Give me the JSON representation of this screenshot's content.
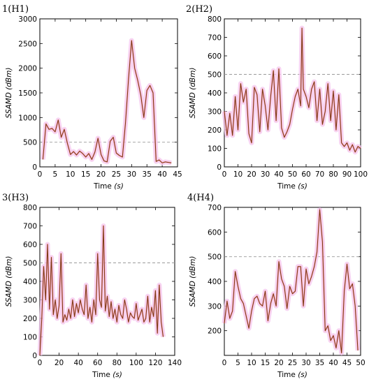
{
  "colors": {
    "line": "#7a3a14",
    "glow": "#f4c6ee",
    "threshold": "#9a9a9a"
  },
  "chart_data": [
    {
      "type": "line",
      "panel_label": "1(H1)",
      "xlabel": "Time",
      "xunit": "(s)",
      "ylabel": "SSAMD",
      "yunit": "(dBm)",
      "xlim": [
        0,
        45
      ],
      "ylim": [
        0,
        3000
      ],
      "xticks": [
        "0",
        "5",
        "10",
        "15",
        "20",
        "25",
        "30",
        "35",
        "40",
        "45"
      ],
      "yticks": [
        "0",
        "500",
        "1000",
        "1500",
        "2000",
        "2500",
        "3000"
      ],
      "threshold": 500,
      "x": [
        1,
        2,
        3,
        4,
        5,
        6,
        7,
        8,
        9,
        10,
        11,
        12,
        13,
        14,
        15,
        16,
        17,
        18,
        19,
        20,
        21,
        22,
        23,
        24,
        25,
        26,
        27,
        28,
        29,
        30,
        31,
        32,
        33,
        34,
        35,
        36,
        37,
        38,
        39,
        40,
        41,
        42,
        43
      ],
      "y": [
        150,
        870,
        760,
        780,
        710,
        950,
        600,
        760,
        480,
        250,
        310,
        240,
        320,
        270,
        200,
        270,
        150,
        300,
        580,
        250,
        120,
        100,
        520,
        600,
        280,
        230,
        200,
        900,
        1800,
        2560,
        2000,
        1750,
        1450,
        1000,
        1550,
        1650,
        1500,
        110,
        140,
        80,
        100,
        90,
        80
      ]
    },
    {
      "type": "line",
      "panel_label": "2(H2)",
      "xlabel": "Time",
      "xunit": "(s)",
      "ylabel": "SSAMD",
      "yunit": "(dBm)",
      "xlim": [
        0,
        100
      ],
      "ylim": [
        0,
        800
      ],
      "xticks": [
        "0",
        "10",
        "20",
        "30",
        "40",
        "50",
        "60",
        "70",
        "80",
        "90",
        "100"
      ],
      "yticks": [
        "0",
        "100",
        "200",
        "300",
        "400",
        "500",
        "600",
        "700",
        "800"
      ],
      "threshold": 500,
      "x": [
        0,
        2,
        4,
        6,
        8,
        10,
        12,
        14,
        16,
        18,
        20,
        22,
        24,
        26,
        28,
        30,
        32,
        34,
        36,
        38,
        40,
        42,
        44,
        46,
        48,
        50,
        52,
        54,
        56,
        57,
        58,
        60,
        62,
        64,
        66,
        68,
        70,
        72,
        74,
        76,
        78,
        80,
        82,
        84,
        86,
        88,
        90,
        92,
        94,
        96,
        98,
        100
      ],
      "y": [
        300,
        170,
        290,
        170,
        380,
        200,
        450,
        350,
        420,
        180,
        130,
        430,
        390,
        190,
        420,
        330,
        200,
        380,
        520,
        250,
        530,
        210,
        160,
        190,
        230,
        310,
        380,
        420,
        330,
        750,
        420,
        380,
        320,
        420,
        460,
        250,
        420,
        230,
        300,
        450,
        250,
        410,
        200,
        390,
        130,
        110,
        130,
        90,
        120,
        80,
        110,
        100
      ]
    },
    {
      "type": "line",
      "panel_label": "3(H3)",
      "xlabel": "Time",
      "xunit": "(s)",
      "ylabel": "SSAMD",
      "yunit": "(dBm)",
      "xlim": [
        0,
        140
      ],
      "ylim": [
        0,
        800
      ],
      "xticks": [
        "0",
        "20",
        "40",
        "60",
        "80",
        "100",
        "120",
        "140"
      ],
      "yticks": [
        "0",
        "100",
        "200",
        "300",
        "400",
        "500",
        "600",
        "700",
        "800"
      ],
      "threshold": 500,
      "x": [
        0,
        2,
        4,
        6,
        8,
        10,
        12,
        14,
        16,
        18,
        20,
        22,
        24,
        26,
        28,
        30,
        32,
        34,
        36,
        38,
        40,
        42,
        44,
        46,
        48,
        50,
        52,
        54,
        56,
        58,
        60,
        62,
        64,
        66,
        68,
        70,
        72,
        74,
        76,
        78,
        80,
        82,
        84,
        86,
        88,
        90,
        92,
        94,
        96,
        98,
        100,
        102,
        104,
        106,
        108,
        110,
        112,
        114,
        116,
        118,
        120,
        122,
        124,
        126,
        128
      ],
      "y": [
        0,
        200,
        480,
        300,
        600,
        250,
        530,
        220,
        300,
        200,
        270,
        550,
        180,
        220,
        190,
        250,
        200,
        300,
        210,
        280,
        230,
        300,
        250,
        220,
        380,
        200,
        260,
        180,
        300,
        220,
        550,
        300,
        260,
        700,
        240,
        320,
        210,
        290,
        200,
        250,
        180,
        270,
        220,
        200,
        300,
        250,
        180,
        230,
        210,
        200,
        280,
        190,
        220,
        250,
        180,
        200,
        320,
        180,
        260,
        210,
        350,
        120,
        380,
        180,
        100
      ]
    },
    {
      "type": "line",
      "panel_label": "4(H4)",
      "xlabel": "Time",
      "xunit": "(s)",
      "ylabel": "SSAMD",
      "yunit": "(dBm)",
      "xlim": [
        0,
        50
      ],
      "ylim": [
        100,
        700
      ],
      "xticks": [
        "0",
        "5",
        "10",
        "15",
        "20",
        "25",
        "30",
        "35",
        "40",
        "45",
        "50"
      ],
      "yticks": [
        "200",
        "300",
        "400",
        "500",
        "600",
        "700"
      ],
      "threshold": 500,
      "x": [
        0,
        1,
        2,
        3,
        4,
        5,
        6,
        7,
        8,
        9,
        10,
        11,
        12,
        13,
        14,
        15,
        16,
        17,
        18,
        19,
        20,
        21,
        22,
        23,
        24,
        25,
        26,
        27,
        28,
        29,
        30,
        31,
        32,
        33,
        34,
        35,
        36,
        37,
        38,
        39,
        40,
        41,
        42,
        43,
        44,
        45,
        46,
        47,
        48,
        49
      ],
      "y": [
        230,
        320,
        250,
        280,
        440,
        380,
        330,
        310,
        260,
        210,
        280,
        330,
        340,
        310,
        300,
        360,
        240,
        310,
        350,
        300,
        480,
        410,
        380,
        290,
        380,
        350,
        360,
        460,
        460,
        300,
        450,
        390,
        420,
        460,
        520,
        690,
        560,
        200,
        220,
        160,
        180,
        130,
        200,
        110,
        360,
        470,
        370,
        390,
        300,
        120
      ]
    }
  ]
}
